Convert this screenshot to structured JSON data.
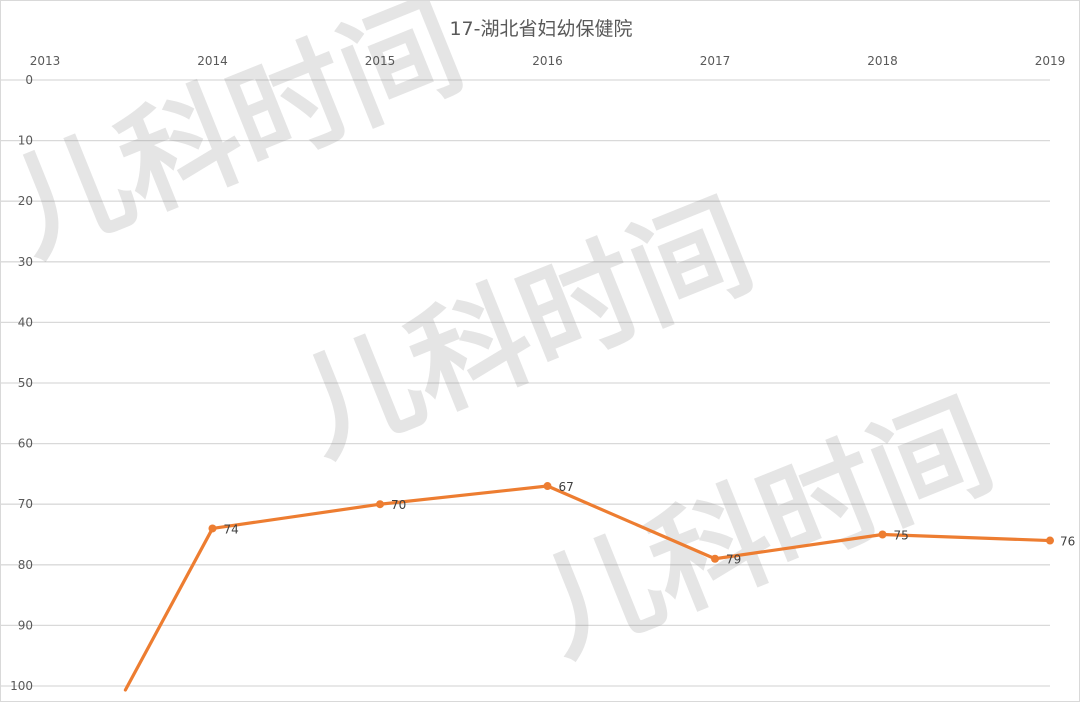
{
  "chart_data": {
    "type": "line",
    "title": "17-湖北省妇幼保健院",
    "x": [
      "2013",
      "2014",
      "2015",
      "2016",
      "2017",
      "2018",
      "2019"
    ],
    "series": [
      {
        "values": [
          null,
          74,
          70,
          67,
          79,
          75,
          76
        ],
        "line_off_bottom_start": {
          "x": 2013.48,
          "y": 100
        },
        "color": "#ed7d31"
      }
    ],
    "y_ticks": [
      0,
      10,
      20,
      30,
      40,
      50,
      60,
      70,
      80,
      90,
      100
    ],
    "ylim": [
      0,
      100
    ],
    "y_axis_reversed": true,
    "x_axis_position": "top",
    "grid": true,
    "legend": "none",
    "data_labels": [
      "74",
      "70",
      "67",
      "79",
      "75",
      "76"
    ],
    "gridline_color": "#d9d9d9"
  },
  "watermark": {
    "text": "儿科时间",
    "color": "#8a8a8a"
  }
}
